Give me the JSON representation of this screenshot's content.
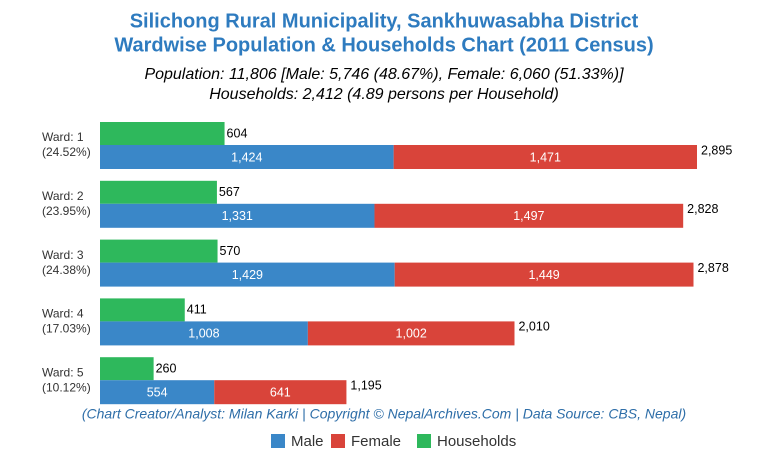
{
  "chart_data": {
    "type": "bar",
    "title": [
      "Silichong Rural Municipality, Sankhuwasabha District",
      "Wardwise Population & Households Chart (2011 Census)"
    ],
    "subtitle": [
      "Population: 11,806 [Male: 5,746 (48.67%), Female: 6,060 (51.33%)]",
      "Households: 2,412 (4.89 persons per Household)"
    ],
    "categories": [
      "Ward: 1",
      "Ward: 2",
      "Ward: 3",
      "Ward: 4",
      "Ward: 5"
    ],
    "category_shares": [
      "(24.52%)",
      "(23.95%)",
      "(24.38%)",
      "(17.03%)",
      "(10.12%)"
    ],
    "series": [
      {
        "name": "Male",
        "color": "#3a87c8",
        "values": [
          1424,
          1331,
          1429,
          1008,
          554
        ],
        "value_labels": [
          "1,424",
          "1,331",
          "1,429",
          "1,008",
          "554"
        ]
      },
      {
        "name": "Female",
        "color": "#d9443a",
        "values": [
          1471,
          1497,
          1449,
          1002,
          641
        ],
        "value_labels": [
          "1,471",
          "1,497",
          "1,449",
          "1,002",
          "641"
        ]
      },
      {
        "name": "Households",
        "color": "#2eb85c",
        "values": [
          604,
          567,
          570,
          411,
          260
        ]
      }
    ],
    "totals": [
      2895,
      2828,
      2878,
      2010,
      1195
    ],
    "total_labels": [
      "2,895",
      "2,828",
      "2,878",
      "2,010",
      "1,195"
    ],
    "source": "(Chart Creator/Analyst: Milan Karki | Copyright © NepalArchives.Com | Data Source: CBS, Nepal)"
  }
}
